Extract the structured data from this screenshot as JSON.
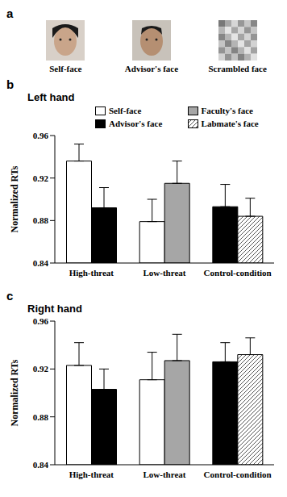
{
  "panel_a": {
    "label": "a",
    "images": [
      "Self-face",
      "Advisor's face",
      "Scrambled face"
    ]
  },
  "chart_data": [
    {
      "type": "bar",
      "annotations": [
        "b"
      ],
      "title": "Left hand",
      "ylabel": "Normalized RTs",
      "categories": [
        "High-threat",
        "Low-threat",
        "Control-condition"
      ],
      "ylim": [
        0.84,
        0.96
      ],
      "yticks": [
        0.84,
        0.88,
        0.92,
        0.96
      ],
      "grid": false,
      "legend": "top",
      "series": [
        {
          "name": "Self-face",
          "color": "#ffffff",
          "values": [
            0.936,
            0.879,
            null
          ],
          "errors": [
            0.016,
            0.021,
            null
          ]
        },
        {
          "name": "Advisor's face",
          "color": "#000000",
          "values": [
            0.892,
            null,
            0.893
          ],
          "errors": [
            0.019,
            null,
            0.021
          ]
        },
        {
          "name": "Faculty's face",
          "color": "#a6a6a6",
          "values": [
            null,
            0.915,
            null
          ],
          "errors": [
            null,
            0.021,
            null
          ]
        },
        {
          "name": "Labmate's face",
          "color": "#555555",
          "line_style": "hatched",
          "values": [
            null,
            null,
            0.884
          ],
          "errors": [
            null,
            null,
            0.017
          ]
        }
      ]
    },
    {
      "type": "bar",
      "annotations": [
        "c"
      ],
      "title": "Right hand",
      "ylabel": "Normalized RTs",
      "categories": [
        "High-threat",
        "Low-threat",
        "Control-condition"
      ],
      "ylim": [
        0.84,
        0.96
      ],
      "yticks": [
        0.84,
        0.88,
        0.92,
        0.96
      ],
      "grid": false,
      "legend": "none",
      "series": [
        {
          "name": "Self-face",
          "color": "#ffffff",
          "values": [
            0.923,
            0.911,
            null
          ],
          "errors": [
            0.019,
            0.023,
            null
          ]
        },
        {
          "name": "Advisor's face",
          "color": "#000000",
          "values": [
            0.903,
            null,
            0.926
          ],
          "errors": [
            0.017,
            null,
            0.016
          ]
        },
        {
          "name": "Faculty's face",
          "color": "#a6a6a6",
          "values": [
            null,
            0.927,
            null
          ],
          "errors": [
            null,
            0.022,
            null
          ]
        },
        {
          "name": "Labmate's face",
          "color": "#555555",
          "line_style": "hatched",
          "values": [
            null,
            null,
            0.932
          ],
          "errors": [
            null,
            null,
            0.014
          ]
        }
      ]
    }
  ]
}
